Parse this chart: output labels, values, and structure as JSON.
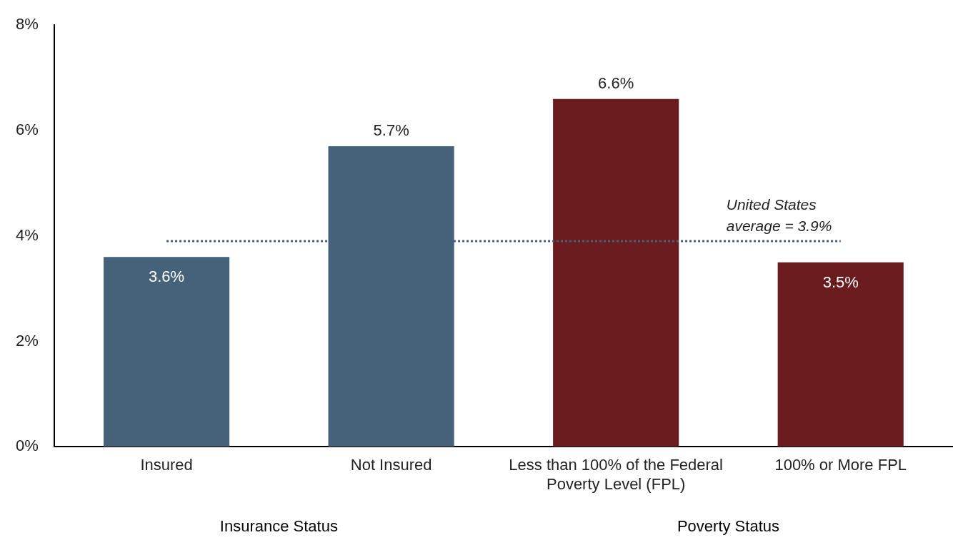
{
  "chart_data": {
    "type": "bar",
    "categories": [
      "Insured",
      "Not Insured",
      "Less than 100% of the Federal Poverty Level (FPL)",
      "100% or More FPL"
    ],
    "values": [
      3.6,
      5.7,
      6.6,
      3.5
    ],
    "colors": [
      "#46617a",
      "#46617a",
      "#6a1c1f",
      "#6a1c1f"
    ],
    "value_labels": [
      "3.6%",
      "5.7%",
      "6.6%",
      "3.5%"
    ],
    "ylim": [
      0,
      8
    ],
    "yticks": [
      {
        "value": 0,
        "label": "0%"
      },
      {
        "value": 2,
        "label": "2%"
      },
      {
        "value": 4,
        "label": "4%"
      },
      {
        "value": 6,
        "label": "6%"
      },
      {
        "value": 8,
        "label": "8%"
      }
    ],
    "ref_lines": [
      {
        "axis": "y",
        "value": 3.9,
        "label": "United States average = 3.9%",
        "color": "#46617a",
        "line_style": "dotted"
      }
    ],
    "annotations": [
      "Insurance Status",
      "Poverty Status"
    ],
    "grid": false,
    "legend": false
  }
}
